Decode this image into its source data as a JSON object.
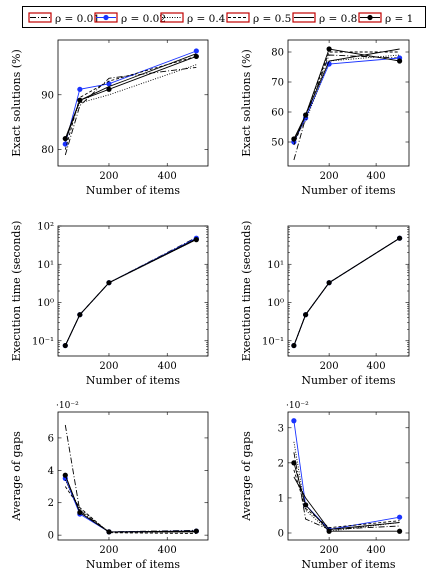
{
  "legend": {
    "entries": [
      {
        "label": "ρ = 0.01",
        "color": "#000000",
        "dash": "6,2,1,2",
        "marker": "none"
      },
      {
        "label": "ρ = 0.02",
        "color": "#1a33ff",
        "dash": "",
        "marker": "circle"
      },
      {
        "label": "ρ = 0.4",
        "color": "#000000",
        "dash": "1,1.5",
        "marker": "none"
      },
      {
        "label": "ρ = 0.5",
        "color": "#000000",
        "dash": "3,2",
        "marker": "none"
      },
      {
        "label": "ρ = 0.8",
        "color": "#000000",
        "dash": "",
        "marker": "none"
      },
      {
        "label": "ρ = 1",
        "color": "#000000",
        "dash": "",
        "marker": "circle"
      }
    ]
  },
  "chart_data": [
    {
      "type": "line",
      "xlabel": "Number of items",
      "ylabel": "Exact solutions (%)",
      "x": [
        50,
        100,
        200,
        500
      ],
      "xlim": [
        25,
        540
      ],
      "xticks": [
        200,
        400
      ],
      "ylim": [
        77,
        100
      ],
      "yticks": [
        80,
        90
      ],
      "yscale": "linear",
      "multiplier": "",
      "series": [
        {
          "values": [
            79,
            88,
            93,
            95
          ]
        },
        {
          "values": [
            81,
            91,
            92,
            98
          ]
        },
        {
          "values": [
            82,
            88.5,
            90,
            95.5
          ]
        },
        {
          "values": [
            80,
            89.5,
            92.5,
            97
          ]
        },
        {
          "values": [
            81.5,
            89,
            91.5,
            97.5
          ]
        },
        {
          "values": [
            82,
            89,
            91,
            97
          ]
        }
      ]
    },
    {
      "type": "line",
      "xlabel": "Number of items",
      "ylabel": "Exact solutions (%)",
      "x": [
        50,
        100,
        200,
        500
      ],
      "xlim": [
        25,
        540
      ],
      "xticks": [
        200,
        400
      ],
      "ylim": [
        42,
        84
      ],
      "yticks": [
        50,
        60,
        70,
        80
      ],
      "yscale": "linear",
      "multiplier": "",
      "series": [
        {
          "values": [
            44,
            58,
            79,
            78
          ]
        },
        {
          "values": [
            50,
            58,
            76,
            78
          ]
        },
        {
          "values": [
            51,
            57,
            77,
            79
          ]
        },
        {
          "values": [
            49,
            59,
            80,
            80
          ]
        },
        {
          "values": [
            50,
            59,
            77,
            81
          ]
        },
        {
          "values": [
            51,
            59,
            81,
            77
          ]
        }
      ]
    },
    {
      "type": "line",
      "xlabel": "Number of items",
      "ylabel": "Execution time (seconds)",
      "x": [
        50,
        100,
        200,
        500
      ],
      "xlim": [
        25,
        540
      ],
      "xticks": [
        200,
        400
      ],
      "ylim": [
        0.04,
        100
      ],
      "yticks": [
        0.1,
        1,
        10,
        100
      ],
      "yticklabels": [
        "10⁻¹",
        "10⁰",
        "10¹",
        "10²"
      ],
      "yscale": "log",
      "multiplier": "",
      "series": [
        {
          "values": [
            0.075,
            0.48,
            3.3,
            50
          ]
        },
        {
          "values": [
            0.075,
            0.48,
            3.3,
            48
          ]
        },
        {
          "values": [
            0.075,
            0.48,
            3.3,
            44
          ]
        },
        {
          "values": [
            0.075,
            0.48,
            3.3,
            45
          ]
        },
        {
          "values": [
            0.075,
            0.48,
            3.3,
            46
          ]
        },
        {
          "values": [
            0.075,
            0.48,
            3.3,
            44
          ]
        }
      ]
    },
    {
      "type": "line",
      "xlabel": "Number of items",
      "ylabel": "Execution time (seconds)",
      "x": [
        50,
        100,
        200,
        500
      ],
      "xlim": [
        25,
        540
      ],
      "xticks": [
        200,
        400
      ],
      "ylim": [
        0.04,
        100
      ],
      "yticks": [
        0.1,
        1,
        10
      ],
      "yticklabels": [
        "10⁻¹",
        "10⁰",
        "10¹"
      ],
      "yscale": "log",
      "multiplier": "",
      "series": [
        {
          "values": [
            0.075,
            0.48,
            3.3,
            48
          ]
        },
        {
          "values": [
            0.075,
            0.48,
            3.3,
            48
          ]
        },
        {
          "values": [
            0.075,
            0.48,
            3.3,
            48
          ]
        },
        {
          "values": [
            0.075,
            0.48,
            3.3,
            48
          ]
        },
        {
          "values": [
            0.075,
            0.48,
            3.3,
            48
          ]
        },
        {
          "values": [
            0.075,
            0.48,
            3.3,
            48
          ]
        }
      ]
    },
    {
      "type": "line",
      "xlabel": "Number of items",
      "ylabel": "Average of gaps",
      "x": [
        50,
        100,
        200,
        500
      ],
      "xlim": [
        25,
        540
      ],
      "xticks": [
        200,
        400
      ],
      "ylim": [
        -0.3,
        7.6
      ],
      "yticks": [
        0,
        2,
        4,
        6
      ],
      "yscale": "linear",
      "multiplier": "·10⁻²",
      "series": [
        {
          "values": [
            6.8,
            1.5,
            0.2,
            0.3
          ]
        },
        {
          "values": [
            3.5,
            1.3,
            0.2,
            0.25
          ]
        },
        {
          "values": [
            3.4,
            1.6,
            0.2,
            0.2
          ]
        },
        {
          "values": [
            3.0,
            1.7,
            0.15,
            0.1
          ]
        },
        {
          "values": [
            3.7,
            1.4,
            0.2,
            0.2
          ]
        },
        {
          "values": [
            3.7,
            1.4,
            0.2,
            0.25
          ]
        }
      ]
    },
    {
      "type": "line",
      "xlabel": "Number of items",
      "ylabel": "Average of gaps",
      "x": [
        50,
        100,
        200,
        500
      ],
      "xlim": [
        25,
        540
      ],
      "xticks": [
        200,
        400
      ],
      "ylim": [
        -0.2,
        3.45
      ],
      "yticks": [
        0,
        1,
        2,
        3
      ],
      "yscale": "linear",
      "multiplier": "·10⁻²",
      "series": [
        {
          "values": [
            2.3,
            0.4,
            0.1,
            0.2
          ]
        },
        {
          "values": [
            3.2,
            0.8,
            0.1,
            0.45
          ]
        },
        {
          "values": [
            2.6,
            0.65,
            0.05,
            0.3
          ]
        },
        {
          "values": [
            1.8,
            0.7,
            0.15,
            0.35
          ]
        },
        {
          "values": [
            1.6,
            1.0,
            0.1,
            0.3
          ]
        },
        {
          "values": [
            2.0,
            0.8,
            0.05,
            0.05
          ]
        }
      ]
    }
  ]
}
